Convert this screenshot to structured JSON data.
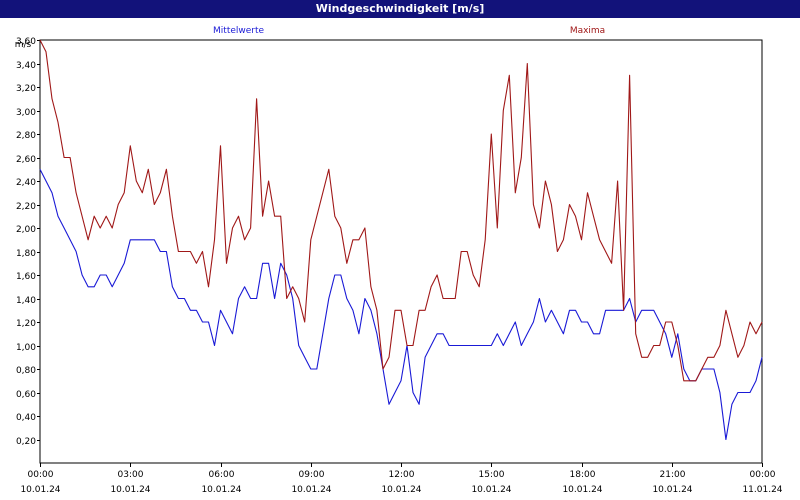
{
  "window": {
    "title": "Windgeschwindigkeit [m/s]"
  },
  "chart_data": {
    "type": "line",
    "title": "Windgeschwindigkeit [m/s]",
    "ylabel": "m/s",
    "xlabel": "",
    "ylim": [
      0,
      3.6
    ],
    "xlim": [
      0,
      24
    ],
    "grid": true,
    "legend_placement": "top",
    "yticks": [
      0.2,
      0.4,
      0.6,
      0.8,
      1.0,
      1.2,
      1.4,
      1.6,
      1.8,
      2.0,
      2.2,
      2.4,
      2.6,
      2.8,
      3.0,
      3.2,
      3.4,
      3.6
    ],
    "ytick_labels": [
      "0,20",
      "0,40",
      "0,60",
      "0,80",
      "1,00",
      "1,20",
      "1,40",
      "1,60",
      "1,80",
      "2,00",
      "2,20",
      "2,40",
      "2,60",
      "2,80",
      "3,00",
      "3,20",
      "3,40",
      "3,60"
    ],
    "xticks": [
      {
        "x": 0,
        "time": "00:00",
        "date": "10.01.24"
      },
      {
        "x": 3,
        "time": "03:00",
        "date": "10.01.24"
      },
      {
        "x": 6,
        "time": "06:00",
        "date": "10.01.24"
      },
      {
        "x": 9,
        "time": "09:00",
        "date": "10.01.24"
      },
      {
        "x": 12,
        "time": "12:00",
        "date": "10.01.24"
      },
      {
        "x": 15,
        "time": "15:00",
        "date": "10.01.24"
      },
      {
        "x": 18,
        "time": "18:00",
        "date": "10.01.24"
      },
      {
        "x": 21,
        "time": "21:00",
        "date": "10.01.24"
      },
      {
        "x": 24,
        "time": "00:00",
        "date": "11.01.24"
      }
    ],
    "series": [
      {
        "name": "Mittelwerte",
        "color": "#1a1ad6",
        "x": [
          0,
          0.2,
          0.4,
          0.6,
          0.8,
          1.0,
          1.2,
          1.4,
          1.6,
          1.8,
          2.0,
          2.2,
          2.4,
          2.6,
          2.8,
          3.0,
          3.2,
          3.4,
          3.6,
          3.8,
          4.0,
          4.2,
          4.4,
          4.6,
          4.8,
          5.0,
          5.2,
          5.4,
          5.6,
          5.8,
          6.0,
          6.2,
          6.4,
          6.6,
          6.8,
          7.0,
          7.2,
          7.4,
          7.6,
          7.8,
          8.0,
          8.2,
          8.4,
          8.6,
          8.8,
          9.0,
          9.2,
          9.4,
          9.6,
          9.8,
          10.0,
          10.2,
          10.4,
          10.6,
          10.8,
          11.0,
          11.2,
          11.4,
          11.6,
          11.8,
          12.0,
          12.2,
          12.4,
          12.6,
          12.8,
          13.0,
          13.2,
          13.4,
          13.6,
          13.8,
          14.0,
          14.2,
          14.4,
          14.6,
          14.8,
          15.0,
          15.2,
          15.4,
          15.6,
          15.8,
          16.0,
          16.2,
          16.4,
          16.6,
          16.8,
          17.0,
          17.2,
          17.4,
          17.6,
          17.8,
          18.0,
          18.2,
          18.4,
          18.6,
          18.8,
          19.0,
          19.2,
          19.4,
          19.6,
          19.8,
          20.0,
          20.2,
          20.4,
          20.6,
          20.8,
          21.0,
          21.2,
          21.4,
          21.6,
          21.8,
          22.0,
          22.2,
          22.4,
          22.6,
          22.8,
          23.0,
          23.2,
          23.4,
          23.6,
          23.8,
          24.0
        ],
        "values": [
          2.5,
          2.4,
          2.3,
          2.1,
          2.0,
          1.9,
          1.8,
          1.6,
          1.5,
          1.5,
          1.6,
          1.6,
          1.5,
          1.6,
          1.7,
          1.9,
          1.9,
          1.9,
          1.9,
          1.9,
          1.8,
          1.8,
          1.5,
          1.4,
          1.4,
          1.3,
          1.3,
          1.2,
          1.2,
          1.0,
          1.3,
          1.2,
          1.1,
          1.4,
          1.5,
          1.4,
          1.4,
          1.7,
          1.7,
          1.4,
          1.7,
          1.6,
          1.4,
          1.0,
          0.9,
          0.8,
          0.8,
          1.1,
          1.4,
          1.6,
          1.6,
          1.4,
          1.3,
          1.1,
          1.4,
          1.3,
          1.1,
          0.8,
          0.5,
          0.6,
          0.7,
          1.0,
          0.6,
          0.5,
          0.9,
          1.0,
          1.1,
          1.1,
          1.0,
          1.0,
          1.0,
          1.0,
          1.0,
          1.0,
          1.0,
          1.0,
          1.1,
          1.0,
          1.1,
          1.2,
          1.0,
          1.1,
          1.2,
          1.4,
          1.2,
          1.3,
          1.2,
          1.1,
          1.3,
          1.3,
          1.2,
          1.2,
          1.1,
          1.1,
          1.3,
          1.3,
          1.3,
          1.3,
          1.4,
          1.2,
          1.3,
          1.3,
          1.3,
          1.2,
          1.1,
          0.9,
          1.1,
          0.8,
          0.7,
          0.7,
          0.8,
          0.8,
          0.8,
          0.6,
          0.2,
          0.5,
          0.6,
          0.6,
          0.6,
          0.7,
          0.9
        ],
        "note_unused": ""
      },
      {
        "name": "Maxima",
        "color": "#a01818",
        "x": [
          0,
          0.2,
          0.4,
          0.6,
          0.8,
          1.0,
          1.2,
          1.4,
          1.6,
          1.8,
          2.0,
          2.2,
          2.4,
          2.6,
          2.8,
          3.0,
          3.2,
          3.4,
          3.6,
          3.8,
          4.0,
          4.2,
          4.4,
          4.6,
          4.8,
          5.0,
          5.2,
          5.4,
          5.6,
          5.8,
          6.0,
          6.2,
          6.4,
          6.6,
          6.8,
          7.0,
          7.2,
          7.4,
          7.6,
          7.8,
          8.0,
          8.2,
          8.4,
          8.6,
          8.8,
          9.0,
          9.2,
          9.4,
          9.6,
          9.8,
          10.0,
          10.2,
          10.4,
          10.6,
          10.8,
          11.0,
          11.2,
          11.4,
          11.6,
          11.8,
          12.0,
          12.2,
          12.4,
          12.6,
          12.8,
          13.0,
          13.2,
          13.4,
          13.6,
          13.8,
          14.0,
          14.2,
          14.4,
          14.6,
          14.8,
          15.0,
          15.2,
          15.4,
          15.6,
          15.8,
          16.0,
          16.2,
          16.4,
          16.6,
          16.8,
          17.0,
          17.2,
          17.4,
          17.6,
          17.8,
          18.0,
          18.2,
          18.4,
          18.6,
          18.8,
          19.0,
          19.2,
          19.4,
          19.6,
          19.8,
          20.0,
          20.2,
          20.4,
          20.6,
          20.8,
          21.0,
          21.2,
          21.4,
          21.6,
          21.8,
          22.0,
          22.2,
          22.4,
          22.6,
          22.8,
          23.0,
          23.2,
          23.4,
          23.6,
          23.8,
          24.0
        ],
        "values": [
          3.6,
          3.5,
          3.1,
          2.9,
          2.6,
          2.6,
          2.3,
          2.1,
          1.9,
          2.1,
          2.0,
          2.1,
          2.0,
          2.2,
          2.3,
          2.7,
          2.4,
          2.3,
          2.5,
          2.2,
          2.3,
          2.5,
          2.1,
          1.8,
          1.8,
          1.8,
          1.7,
          1.8,
          1.5,
          1.9,
          2.7,
          1.7,
          2.0,
          2.1,
          1.9,
          2.0,
          3.1,
          2.1,
          2.4,
          2.1,
          2.1,
          1.4,
          1.5,
          1.4,
          1.2,
          1.9,
          2.1,
          2.3,
          2.5,
          2.1,
          2.0,
          1.7,
          1.9,
          1.9,
          2.0,
          1.5,
          1.3,
          0.8,
          0.9,
          1.3,
          1.3,
          1.0,
          1.0,
          1.3,
          1.3,
          1.5,
          1.6,
          1.4,
          1.4,
          1.4,
          1.8,
          1.8,
          1.6,
          1.5,
          1.9,
          2.8,
          2.0,
          3.0,
          3.3,
          2.3,
          2.6,
          3.4,
          2.2,
          2.0,
          2.4,
          2.2,
          1.8,
          1.9,
          2.2,
          2.1,
          1.9,
          2.3,
          2.1,
          1.9,
          1.8,
          1.7,
          2.4,
          1.3,
          3.3,
          1.1,
          0.9,
          0.9,
          1.0,
          1.0,
          1.2,
          1.2,
          1.0,
          0.7,
          0.7,
          0.7,
          0.8,
          0.9,
          0.9,
          1.0,
          1.3,
          1.1,
          0.9,
          1.0,
          1.2,
          1.1,
          1.2
        ]
      }
    ]
  }
}
